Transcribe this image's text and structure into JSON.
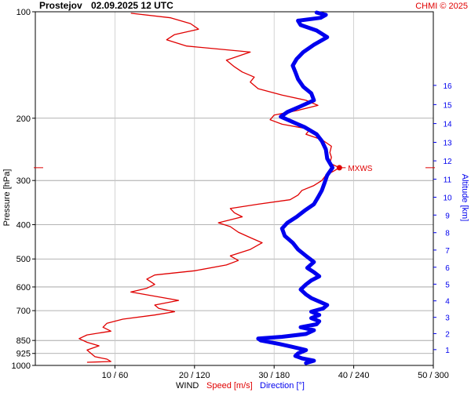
{
  "header": {
    "station": "Prostejov",
    "datetime": "02.09.2025 12 UTC",
    "credit": "CHMI © 2025"
  },
  "colors": {
    "speed": "#e00000",
    "direction": "#0000ee",
    "grid": "#c8c8c8",
    "axis": "#000000",
    "credit": "#e00000"
  },
  "chart_data": {
    "type": "line",
    "title": "Prostejov    02.09.2025 12 UTC",
    "y_left": {
      "label": "Pressure [hPa]",
      "scale": "log",
      "range": [
        1000,
        100
      ],
      "ticks": [
        100,
        200,
        300,
        400,
        500,
        600,
        700,
        850,
        925,
        1000
      ]
    },
    "y_right": {
      "label": "Altitude [km]",
      "ticks": [
        1,
        2,
        3,
        4,
        5,
        6,
        7,
        8,
        9,
        10,
        11,
        12,
        13,
        14,
        15,
        16
      ]
    },
    "x_axis": {
      "label_prefix": "WIND",
      "speed_label": "Speed [m/s]",
      "direction_label": "Direction [°]",
      "speed_range": [
        0,
        50
      ],
      "direction_range": [
        0,
        300
      ],
      "tick_labels": [
        "10 / 60",
        "20 / 120",
        "30 / 180",
        "40 / 240",
        "50 / 300"
      ],
      "tick_speeds": [
        10,
        20,
        30,
        40,
        50
      ]
    },
    "grid": true,
    "mxws": {
      "label": "MXWS",
      "pressure": 276,
      "speed": 38.2
    },
    "series": [
      {
        "name": "Speed [m/s]",
        "unit": "m/s",
        "points": [
          [
            980,
            6.5
          ],
          [
            975,
            9.5
          ],
          [
            960,
            9.0
          ],
          [
            945,
            7.5
          ],
          [
            925,
            7.0
          ],
          [
            905,
            6.5
          ],
          [
            880,
            8.0
          ],
          [
            860,
            6.5
          ],
          [
            840,
            5.5
          ],
          [
            820,
            6.5
          ],
          [
            800,
            9.5
          ],
          [
            780,
            8.5
          ],
          [
            760,
            9.0
          ],
          [
            740,
            11.0
          ],
          [
            720,
            15.0
          ],
          [
            705,
            17.5
          ],
          [
            690,
            15.5
          ],
          [
            675,
            15.0
          ],
          [
            655,
            18.0
          ],
          [
            640,
            15.5
          ],
          [
            620,
            12.0
          ],
          [
            605,
            14.0
          ],
          [
            590,
            15.0
          ],
          [
            570,
            14.0
          ],
          [
            555,
            15.0
          ],
          [
            540,
            20.0
          ],
          [
            520,
            24.0
          ],
          [
            505,
            25.5
          ],
          [
            490,
            24.5
          ],
          [
            470,
            27.0
          ],
          [
            450,
            28.5
          ],
          [
            435,
            27.0
          ],
          [
            420,
            25.5
          ],
          [
            405,
            24.5
          ],
          [
            395,
            23.0
          ],
          [
            380,
            26.0
          ],
          [
            370,
            25.0
          ],
          [
            360,
            24.5
          ],
          [
            350,
            28.0
          ],
          [
            340,
            32.0
          ],
          [
            330,
            33.0
          ],
          [
            320,
            33.5
          ],
          [
            310,
            35.0
          ],
          [
            300,
            36.0
          ],
          [
            290,
            36.5
          ],
          [
            282,
            37.5
          ],
          [
            276,
            38.2
          ],
          [
            268,
            37.0
          ],
          [
            258,
            37.2
          ],
          [
            250,
            37.0
          ],
          [
            240,
            37.2
          ],
          [
            230,
            36.0
          ],
          [
            222,
            34.0
          ],
          [
            215,
            34.5
          ],
          [
            208,
            31.0
          ],
          [
            202,
            29.5
          ],
          [
            196,
            30.0
          ],
          [
            190,
            33.0
          ],
          [
            184,
            35.5
          ],
          [
            178,
            34.0
          ],
          [
            172,
            31.0
          ],
          [
            165,
            28.0
          ],
          [
            158,
            27.0
          ],
          [
            153,
            27.5
          ],
          [
            148,
            26.0
          ],
          [
            143,
            25.0
          ],
          [
            137,
            24.0
          ],
          [
            130,
            27.0
          ],
          [
            125,
            19.0
          ],
          [
            120,
            16.5
          ],
          [
            116,
            17.5
          ],
          [
            112,
            20.5
          ],
          [
            108,
            19.5
          ],
          [
            104,
            17.0
          ],
          [
            101,
            12.0
          ]
        ]
      },
      {
        "name": "Direction [°]",
        "unit": "deg",
        "points": [
          [
            985,
            204
          ],
          [
            970,
            210
          ],
          [
            955,
            201
          ],
          [
            940,
            196
          ],
          [
            925,
            198
          ],
          [
            905,
            204
          ],
          [
            885,
            193
          ],
          [
            870,
            184
          ],
          [
            850,
            170
          ],
          [
            840,
            168
          ],
          [
            830,
            186
          ],
          [
            815,
            204
          ],
          [
            795,
            210
          ],
          [
            780,
            200
          ],
          [
            765,
            212
          ],
          [
            750,
            214
          ],
          [
            735,
            208
          ],
          [
            720,
            214
          ],
          [
            705,
            208
          ],
          [
            690,
            217
          ],
          [
            675,
            220
          ],
          [
            660,
            214
          ],
          [
            645,
            208
          ],
          [
            630,
            204
          ],
          [
            610,
            200
          ],
          [
            590,
            204
          ],
          [
            575,
            208
          ],
          [
            560,
            214
          ],
          [
            545,
            210
          ],
          [
            530,
            205
          ],
          [
            510,
            210
          ],
          [
            490,
            204
          ],
          [
            470,
            198
          ],
          [
            450,
            194
          ],
          [
            430,
            188
          ],
          [
            410,
            186
          ],
          [
            395,
            190
          ],
          [
            380,
            197
          ],
          [
            365,
            203
          ],
          [
            350,
            210
          ],
          [
            335,
            213
          ],
          [
            320,
            216
          ],
          [
            305,
            218
          ],
          [
            290,
            220
          ],
          [
            276,
            224
          ],
          [
            260,
            220
          ],
          [
            245,
            219
          ],
          [
            232,
            216
          ],
          [
            222,
            212
          ],
          [
            212,
            203
          ],
          [
            205,
            194
          ],
          [
            198,
            185
          ],
          [
            192,
            190
          ],
          [
            185,
            200
          ],
          [
            178,
            210
          ],
          [
            170,
            208
          ],
          [
            163,
            202
          ],
          [
            155,
            198
          ],
          [
            148,
            196
          ],
          [
            142,
            194
          ],
          [
            136,
            197
          ],
          [
            130,
            202
          ],
          [
            124,
            210
          ],
          [
            118,
            220
          ],
          [
            113,
            212
          ],
          [
            109,
            200
          ],
          [
            106,
            198
          ],
          [
            104,
            215
          ],
          [
            102,
            219
          ],
          [
            100.5,
            212
          ]
        ]
      }
    ]
  }
}
